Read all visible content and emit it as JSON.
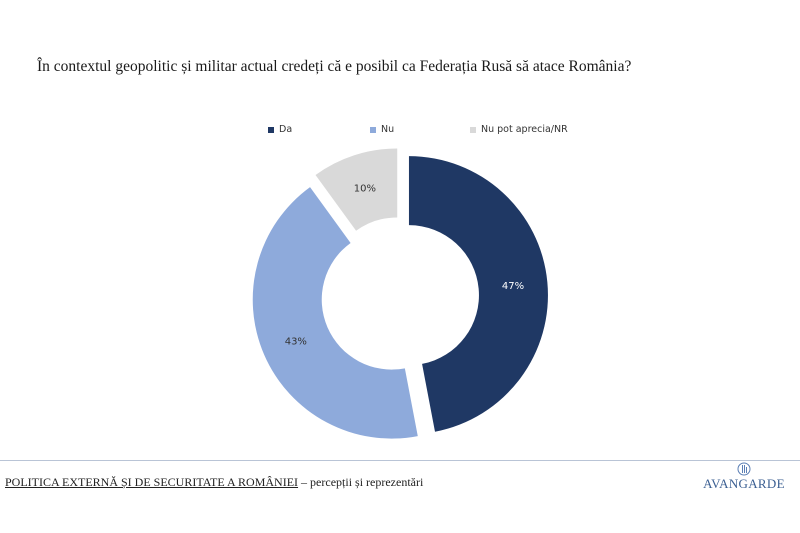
{
  "title": "În contextul geopolitic și militar actual credeți că e posibil ca Federația Rusă să atace România?",
  "chart_data": {
    "type": "pie",
    "categories": [
      "Da",
      "Nu",
      "Nu pot aprecia/NR"
    ],
    "values": [
      47,
      43,
      10
    ],
    "labels": [
      "47%",
      "43%",
      "10%"
    ],
    "colors": [
      "#1f3864",
      "#8eaadb",
      "#d9d9d9"
    ],
    "label_colors": [
      "#ffffff",
      "#333333",
      "#333333"
    ],
    "donut": true,
    "legend_position": "top"
  },
  "footer": {
    "title": "POLITICA EXTERNĂ ȘI DE SECURITATE A ROMÂNIEI",
    "subtitle": " – percepții și reprezentări"
  },
  "logo": {
    "text": "AVANGARDE",
    "icon": "avangarde-logo-icon"
  }
}
